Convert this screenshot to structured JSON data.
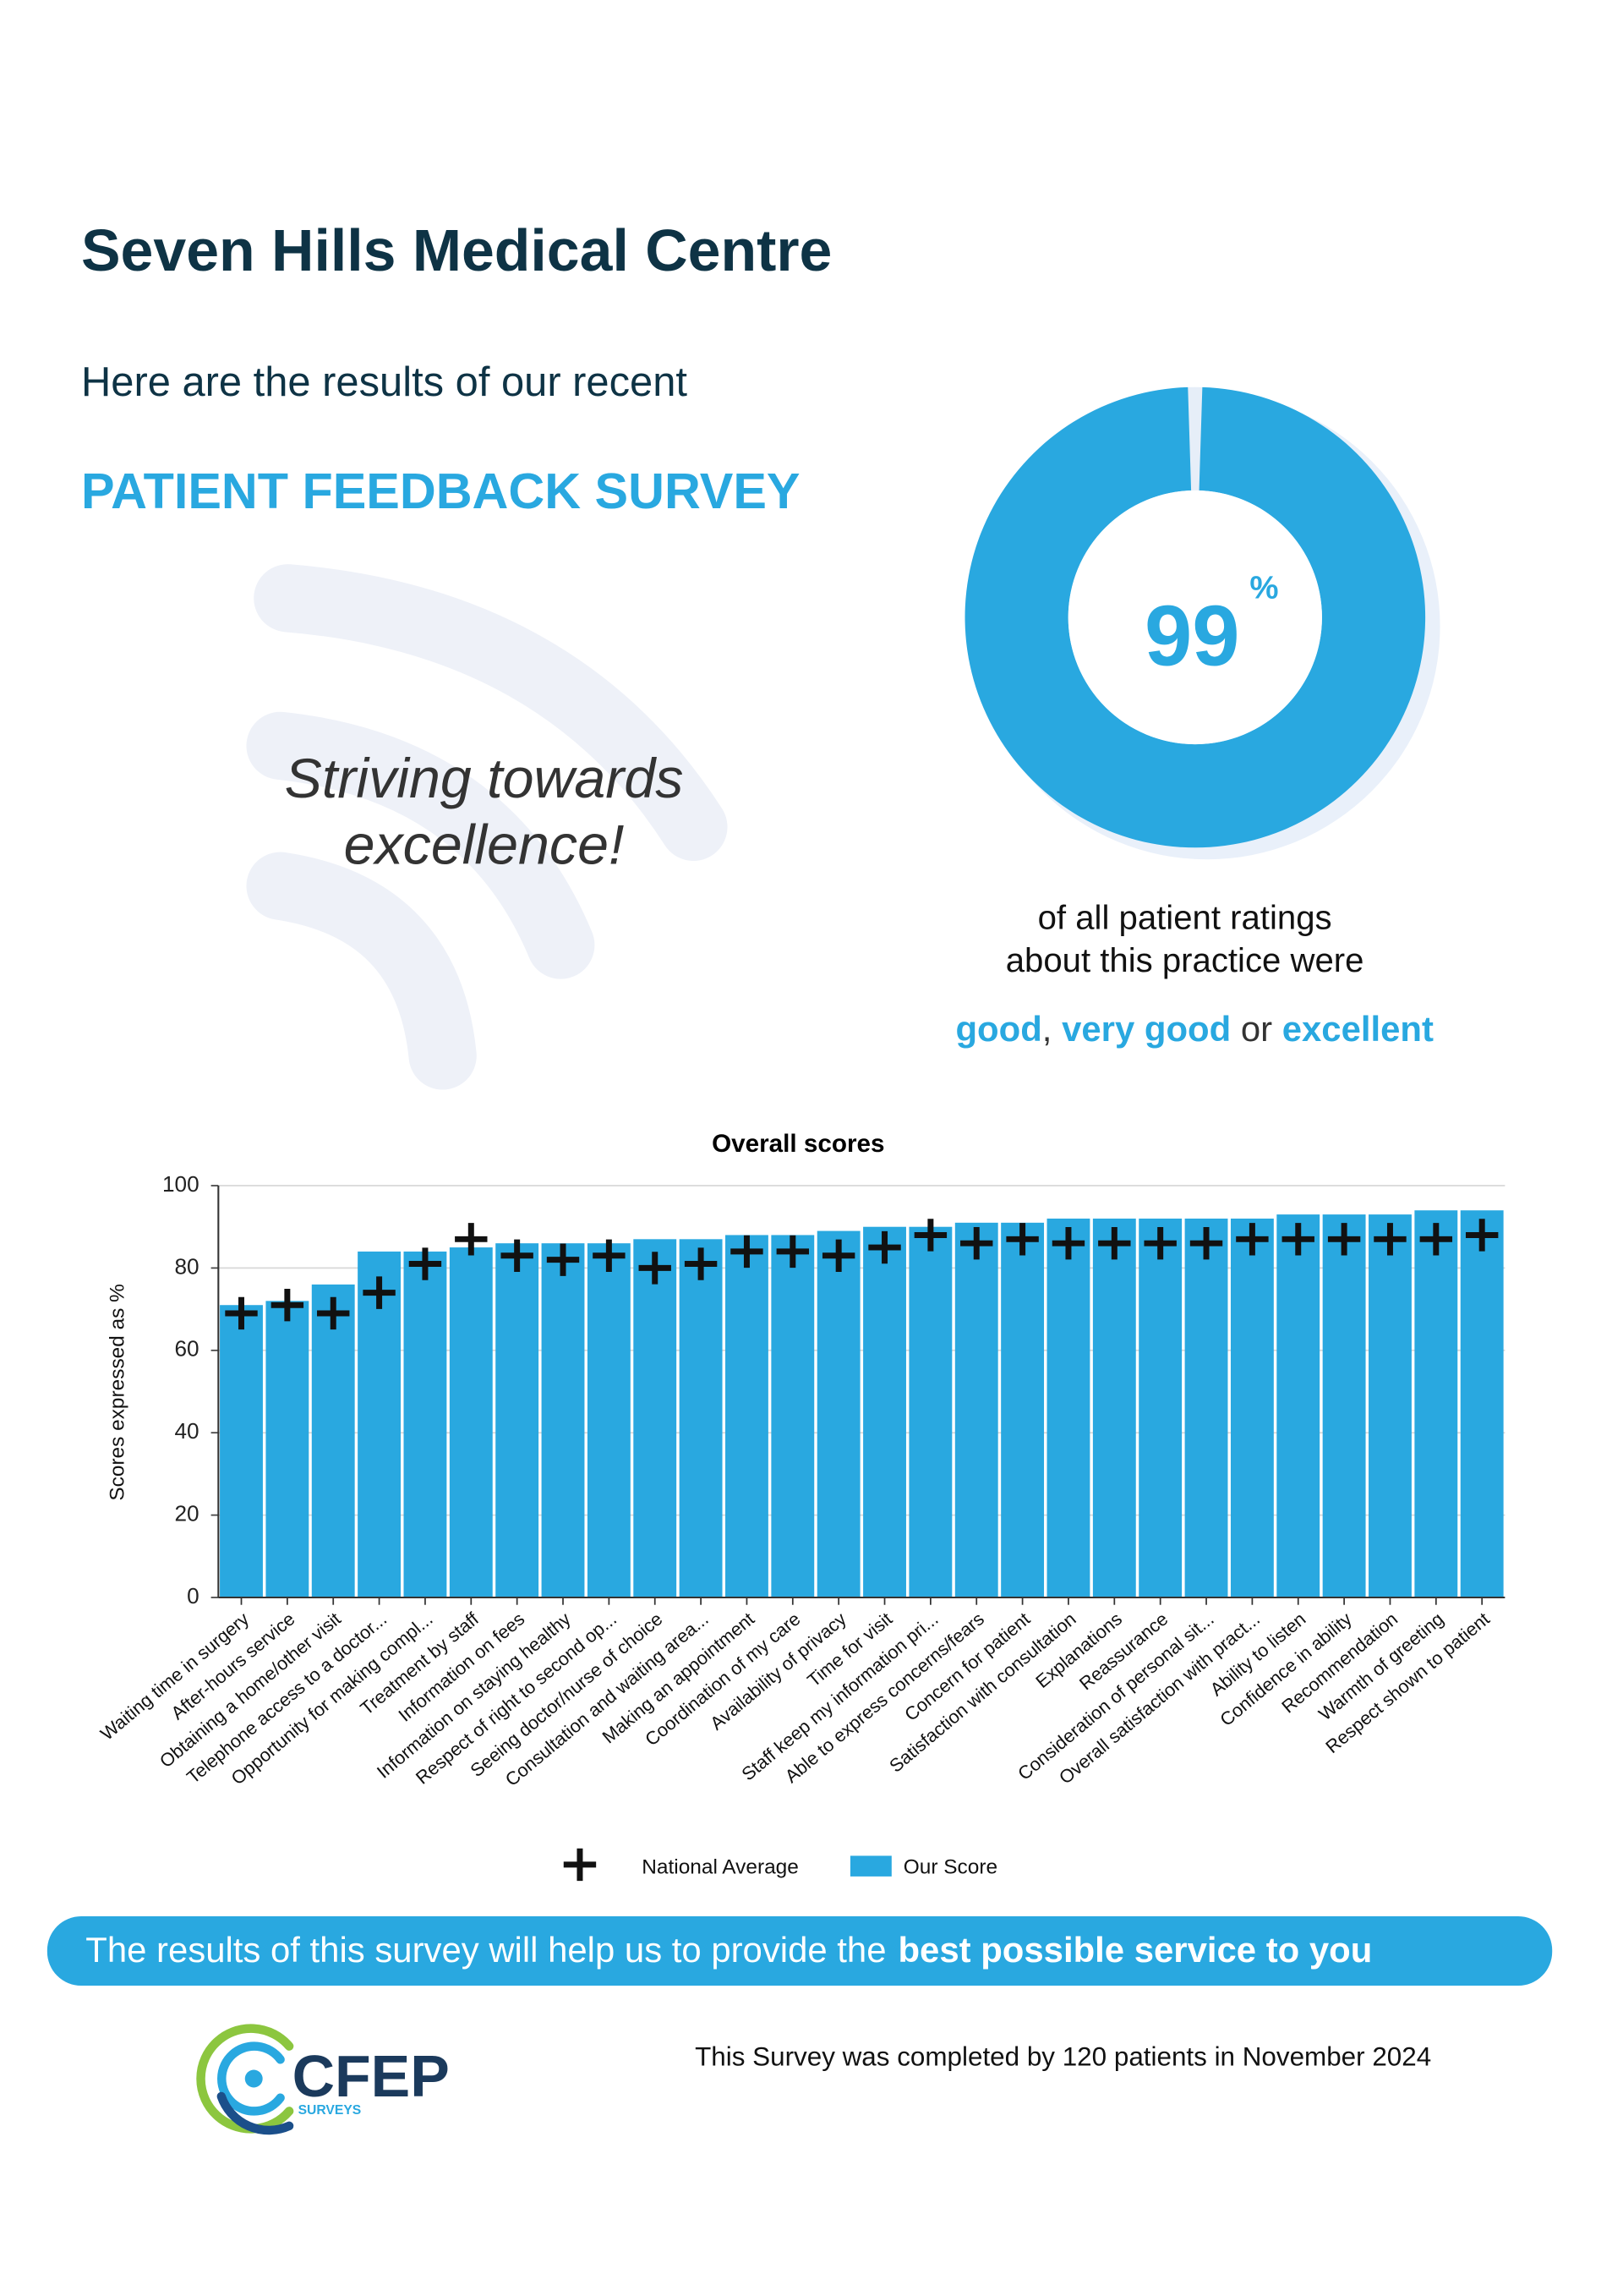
{
  "header": {
    "title": "Seven Hills Medical Centre",
    "intro": "Here are the results of our recent",
    "survey": "PATIENT FEEDBACK SURVEY",
    "slogan": [
      "Striving towards",
      "excellence!"
    ]
  },
  "donut": {
    "value": 99,
    "unit": "%",
    "caption": [
      "of all patient ratings",
      "about this practice were"
    ],
    "rating": [
      "good",
      ", ",
      "very good",
      " or ",
      "excellent"
    ]
  },
  "chart_data": {
    "type": "bar",
    "title": "Overall scores",
    "y_label": "Scores expressed as %",
    "categories": [
      "Waiting time in surgery",
      "After-hours service",
      "Obtaining a home/other visit",
      "Telephone access to a doctor...",
      "Opportunity for making compl...",
      "Treatment by staff",
      "Information on fees",
      "Information on staying healthy",
      "Respect of right to second op...",
      "Seeing doctor/nurse of choice",
      "Consultation and waiting area...",
      "Making an appointment",
      "Coordination of my care",
      "Availability of privacy",
      "Time for visit",
      "Staff keep my information pri...",
      "Able to express concerns/fears",
      "Concern for patient",
      "Satisfaction with consultation",
      "Explanations",
      "Reassurance",
      "Consideration of personal sit...",
      "Overall satisfaction with pract...",
      "Ability to listen",
      "Confidence in ability",
      "Recommendation",
      "Warmth of greeting",
      "Respect shown to patient"
    ],
    "series": [
      {
        "name": "National Average",
        "color": "#111111",
        "marker": "plus",
        "values": [
          69,
          71,
          69,
          74,
          81,
          87,
          83,
          82,
          83,
          80,
          81,
          84,
          84,
          83,
          85,
          88,
          86,
          87,
          86,
          86,
          86,
          86,
          87,
          87,
          87,
          87,
          87,
          88
        ]
      },
      {
        "name": "Our Score",
        "color": "#29a8e0",
        "values": [
          71,
          72,
          76,
          84,
          84,
          85,
          86,
          86,
          86,
          87,
          87,
          88,
          88,
          89,
          90,
          90,
          91,
          91,
          92,
          92,
          92,
          92,
          92,
          93,
          93,
          93,
          94,
          94
        ]
      }
    ],
    "ylim": [
      0,
      100
    ],
    "yticks": [
      0,
      20,
      40,
      60,
      80,
      100
    ],
    "grid": true
  },
  "banner": {
    "text": "The results of this survey will help us to provide the",
    "bold": "best possible service to you"
  },
  "footer": {
    "note": "This Survey was completed by 120 patients in November 2024",
    "logo": "CFEP",
    "logo_sub": "SURVEYS"
  }
}
